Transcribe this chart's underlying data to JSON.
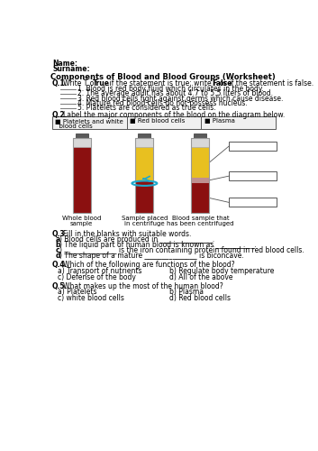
{
  "title": "Components of Blood and Blood Groups (Worksheet)",
  "name_label": "Name:",
  "surname_label": "Surname:",
  "q1_items": [
    "1. Blood is red body fluid which circulates in the body.",
    "2. The average adult has about 4.7 to 5.5 liters of blood.",
    "3. Red blood cells fight against germs which cause disease.",
    "4. Mature red blood cells do not possess nucleus.",
    "5. Platelets are considered as true cells."
  ],
  "q2_legend": [
    "Platelets and white\nblood cells",
    "Red blood cells",
    "Plasma"
  ],
  "q3_items": [
    "a) Blood cells are produced in _______________.",
    "b) The liquid part of human blood is known as ___________.",
    "c) _______________ is the iron containing protein found in red blood cells.",
    "d) The shape of a mature _______________ is biconcave."
  ],
  "q4_items": [
    [
      "a) Transport of nutrients",
      "b) Regulate body temperature"
    ],
    [
      "c) Defense of the body",
      "d) All of the above"
    ]
  ],
  "q5_items": [
    [
      "a) Platelets",
      "b) Plasma"
    ],
    [
      "c) white blood cells",
      "d) Red blood cells"
    ]
  ],
  "tube1_layers": [
    [
      "#8B1010",
      1.0
    ]
  ],
  "tube2_layers": [
    [
      "#e8c020",
      0.52
    ],
    [
      "#8B1010",
      0.48
    ]
  ],
  "tube3_layers": [
    [
      "#e8c020",
      0.46
    ],
    [
      "#c09090",
      0.08
    ],
    [
      "#8B1010",
      0.46
    ]
  ],
  "cap_color": "#666666",
  "tube_top_color": "#e8e8e8",
  "bg_color": "#ffffff"
}
